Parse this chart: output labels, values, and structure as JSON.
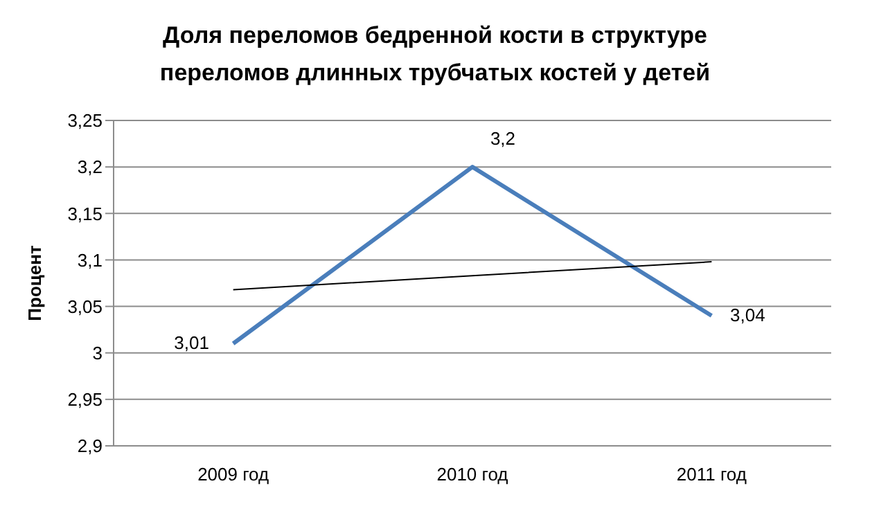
{
  "chart_data": {
    "type": "line",
    "title": "Доля переломов бедренной кости в структуре\nпереломов длинных трубчатых костей у детей",
    "ylabel": "Процент",
    "categories": [
      "2009 год",
      "2010 год",
      "2011 год"
    ],
    "series": [
      {
        "color": "#4a7ebb",
        "values": [
          3.01,
          3.2,
          3.04
        ],
        "value_labels": [
          "3,01",
          "3,2",
          "3,04"
        ]
      },
      {
        "color": "#000000",
        "values": [
          3.068,
          3.083,
          3.098
        ]
      }
    ],
    "ylim": [
      2.9,
      3.25
    ],
    "yticks": [
      {
        "value": 2.9,
        "label": "2,9"
      },
      {
        "value": 2.95,
        "label": "2,95"
      },
      {
        "value": 3,
        "label": "3"
      },
      {
        "value": 3.05,
        "label": "3,05"
      },
      {
        "value": 3.1,
        "label": "3,1"
      },
      {
        "value": 3.15,
        "label": "3,15"
      },
      {
        "value": 3.2,
        "label": "3,2"
      },
      {
        "value": 3.25,
        "label": "3,25"
      }
    ],
    "grid": "y",
    "legend": false,
    "marker": "none"
  }
}
